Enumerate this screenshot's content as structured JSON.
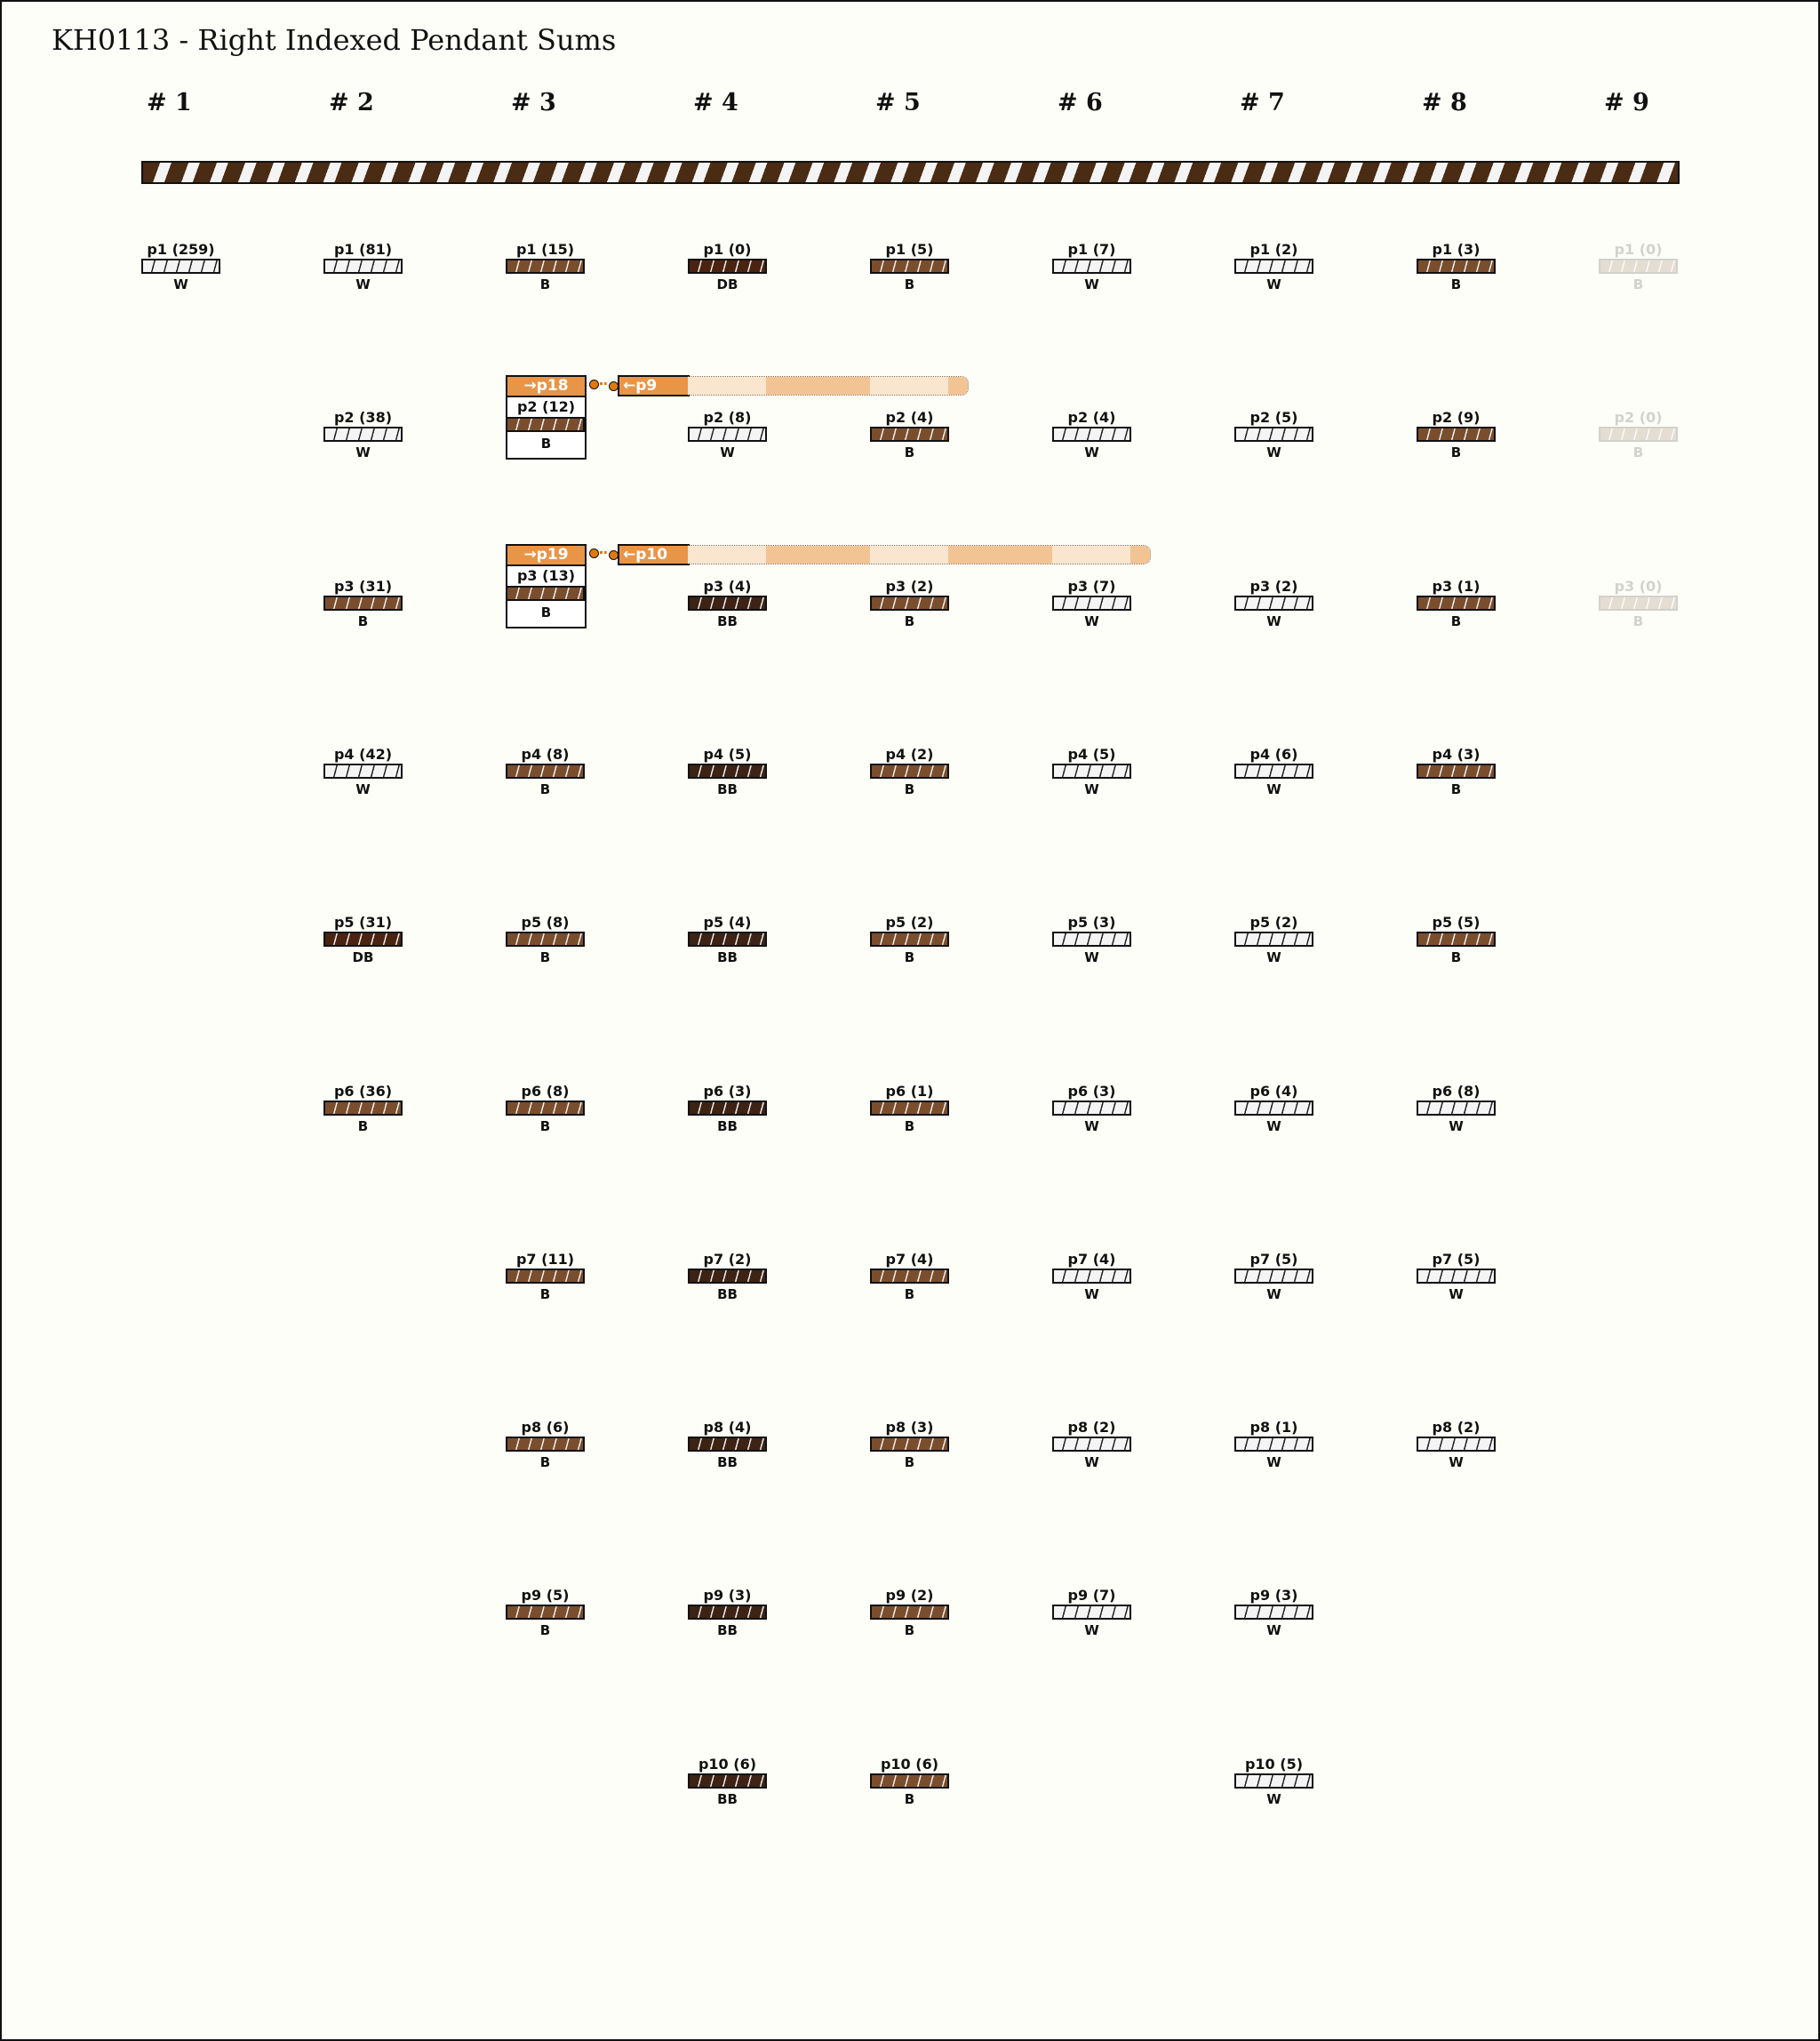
{
  "title": "KH0113 - Right Indexed Pendant Sums",
  "colors": {
    "W": "#f4f4f4",
    "B": "#7a4e2d",
    "DB": "#4b2411",
    "BB": "#3d2314",
    "link": "#e89548",
    "band_light": "#fae6cf",
    "band_dark": "#f2c494"
  },
  "columns": [
    {
      "label": "# 1",
      "faded": false,
      "pendants": [
        {
          "label": "p1 (259)",
          "color": "W"
        }
      ]
    },
    {
      "label": "# 2",
      "faded": false,
      "pendants": [
        {
          "label": "p1 (81)",
          "color": "W"
        },
        {
          "label": "p2 (38)",
          "color": "W"
        },
        {
          "label": "p3 (31)",
          "color": "B"
        },
        {
          "label": "p4 (42)",
          "color": "W"
        },
        {
          "label": "p5 (31)",
          "color": "DB"
        },
        {
          "label": "p6 (36)",
          "color": "B"
        }
      ]
    },
    {
      "label": "# 3",
      "faded": false,
      "pendants": [
        {
          "label": "p1 (15)",
          "color": "B"
        },
        {
          "label": "p2 (12)",
          "color": "B",
          "link_to": "→p18",
          "link_from": "←p9"
        },
        {
          "label": "p3 (13)",
          "color": "B",
          "link_to": "→p19",
          "link_from": "←p10"
        },
        {
          "label": "p4 (8)",
          "color": "B"
        },
        {
          "label": "p5 (8)",
          "color": "B"
        },
        {
          "label": "p6 (8)",
          "color": "B"
        },
        {
          "label": "p7 (11)",
          "color": "B"
        },
        {
          "label": "p8 (6)",
          "color": "B"
        },
        {
          "label": "p9 (5)",
          "color": "B"
        }
      ]
    },
    {
      "label": "# 4",
      "faded": false,
      "pendants": [
        {
          "label": "p1 (0)",
          "color": "DB"
        },
        {
          "label": "p2 (8)",
          "color": "W"
        },
        {
          "label": "p3 (4)",
          "color": "BB"
        },
        {
          "label": "p4 (5)",
          "color": "BB"
        },
        {
          "label": "p5 (4)",
          "color": "BB"
        },
        {
          "label": "p6 (3)",
          "color": "BB"
        },
        {
          "label": "p7 (2)",
          "color": "BB"
        },
        {
          "label": "p8 (4)",
          "color": "BB"
        },
        {
          "label": "p9 (3)",
          "color": "BB"
        },
        {
          "label": "p10 (6)",
          "color": "BB"
        }
      ]
    },
    {
      "label": "# 5",
      "faded": false,
      "pendants": [
        {
          "label": "p1 (5)",
          "color": "B"
        },
        {
          "label": "p2 (4)",
          "color": "B"
        },
        {
          "label": "p3 (2)",
          "color": "B"
        },
        {
          "label": "p4 (2)",
          "color": "B"
        },
        {
          "label": "p5 (2)",
          "color": "B"
        },
        {
          "label": "p6 (1)",
          "color": "B"
        },
        {
          "label": "p7 (4)",
          "color": "B"
        },
        {
          "label": "p8 (3)",
          "color": "B"
        },
        {
          "label": "p9 (2)",
          "color": "B"
        },
        {
          "label": "p10 (6)",
          "color": "B"
        }
      ]
    },
    {
      "label": "# 6",
      "faded": false,
      "pendants": [
        {
          "label": "p1 (7)",
          "color": "W"
        },
        {
          "label": "p2 (4)",
          "color": "W"
        },
        {
          "label": "p3 (7)",
          "color": "W"
        },
        {
          "label": "p4 (5)",
          "color": "W"
        },
        {
          "label": "p5 (3)",
          "color": "W"
        },
        {
          "label": "p6 (3)",
          "color": "W"
        },
        {
          "label": "p7 (4)",
          "color": "W"
        },
        {
          "label": "p8 (2)",
          "color": "W"
        },
        {
          "label": "p9 (7)",
          "color": "W"
        }
      ]
    },
    {
      "label": "# 7",
      "faded": false,
      "pendants": [
        {
          "label": "p1 (2)",
          "color": "W"
        },
        {
          "label": "p2 (5)",
          "color": "W"
        },
        {
          "label": "p3 (2)",
          "color": "W"
        },
        {
          "label": "p4 (6)",
          "color": "W"
        },
        {
          "label": "p5 (2)",
          "color": "W"
        },
        {
          "label": "p6 (4)",
          "color": "W"
        },
        {
          "label": "p7 (5)",
          "color": "W"
        },
        {
          "label": "p8 (1)",
          "color": "W"
        },
        {
          "label": "p9 (3)",
          "color": "W"
        },
        {
          "label": "p10 (5)",
          "color": "W"
        }
      ]
    },
    {
      "label": "# 8",
      "faded": false,
      "pendants": [
        {
          "label": "p1 (3)",
          "color": "B"
        },
        {
          "label": "p2 (9)",
          "color": "B"
        },
        {
          "label": "p3 (1)",
          "color": "B"
        },
        {
          "label": "p4 (3)",
          "color": "B"
        },
        {
          "label": "p5 (5)",
          "color": "B"
        },
        {
          "label": "p6 (8)",
          "color": "W"
        },
        {
          "label": "p7 (5)",
          "color": "W"
        },
        {
          "label": "p8 (2)",
          "color": "W"
        }
      ]
    },
    {
      "label": "# 9",
      "faded": true,
      "pendants": [
        {
          "label": "p1 (0)",
          "color": "B"
        },
        {
          "label": "p2 (0)",
          "color": "B"
        },
        {
          "label": "p3 (0)",
          "color": "B"
        }
      ]
    }
  ]
}
